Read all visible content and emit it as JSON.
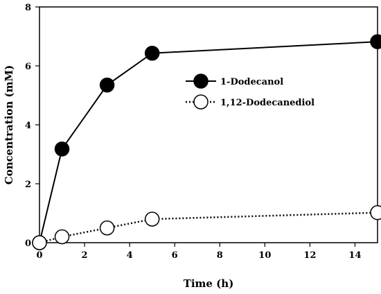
{
  "chart_data": {
    "type": "line",
    "xlabel": "Time (h)",
    "ylabel": "Concentration (mM)",
    "xlim": [
      0,
      15
    ],
    "ylim": [
      0,
      8
    ],
    "xticks": [
      0,
      2,
      4,
      6,
      8,
      10,
      12,
      14
    ],
    "yticks": [
      0,
      2,
      4,
      6,
      8
    ],
    "grid": false,
    "legend_position": "center-right",
    "series": [
      {
        "name": "1-Dodecanol",
        "marker": "filled-circle",
        "line_style": "solid",
        "color": "#000000",
        "x": [
          0,
          1,
          3,
          5,
          15
        ],
        "y": [
          0.0,
          3.18,
          5.35,
          6.43,
          6.82
        ]
      },
      {
        "name": "1,12-Dodecanediol",
        "marker": "open-circle",
        "line_style": "dotted",
        "color": "#000000",
        "x": [
          0,
          1,
          3,
          5,
          15
        ],
        "y": [
          0.0,
          0.2,
          0.5,
          0.8,
          1.02
        ]
      }
    ]
  }
}
